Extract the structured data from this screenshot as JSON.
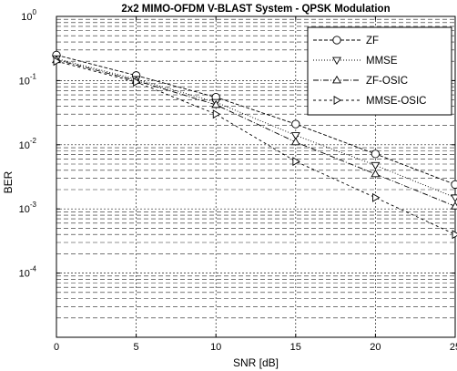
{
  "chart_data": {
    "type": "line",
    "title": "2x2 MIMO-OFDM V-BLAST System -  QPSK Modulation",
    "xlabel": "SNR [dB]",
    "ylabel": "BER",
    "xscale": "linear",
    "yscale": "log",
    "xlim": [
      0,
      25
    ],
    "ylim": [
      1e-05,
      1
    ],
    "x_ticks": [
      0,
      5,
      10,
      15,
      20,
      25
    ],
    "x_tick_labels": [
      "0",
      "5",
      "10",
      "15",
      "20",
      "25"
    ],
    "y_ticks": [
      1,
      0.1,
      0.01,
      0.001,
      0.0001
    ],
    "y_tick_labels": [
      {
        "base": "10",
        "exp": "0"
      },
      {
        "base": "10",
        "exp": "-1"
      },
      {
        "base": "10",
        "exp": "-2"
      },
      {
        "base": "10",
        "exp": "-3"
      },
      {
        "base": "10",
        "exp": "-4"
      }
    ],
    "grid": true,
    "legend_position": "top-right",
    "x": [
      0,
      5,
      10,
      15,
      20,
      25
    ],
    "series": [
      {
        "name": "ZF",
        "marker": "circle",
        "dash": "4,2",
        "values": [
          0.25,
          0.12,
          0.055,
          0.021,
          0.0072,
          0.0024
        ]
      },
      {
        "name": "MMSE",
        "marker": "triangle-down",
        "dash": "1,2",
        "values": [
          0.22,
          0.105,
          0.046,
          0.014,
          0.0048,
          0.0015
        ]
      },
      {
        "name": "ZF-OSIC",
        "marker": "triangle-up",
        "dash": "6,2,1,2",
        "values": [
          0.21,
          0.1,
          0.042,
          0.011,
          0.0035,
          0.0011
        ]
      },
      {
        "name": "MMSE-OSIC",
        "marker": "triangle-right",
        "dash": "3,3",
        "values": [
          0.2,
          0.095,
          0.03,
          0.0055,
          0.0015,
          0.0004
        ]
      }
    ]
  }
}
